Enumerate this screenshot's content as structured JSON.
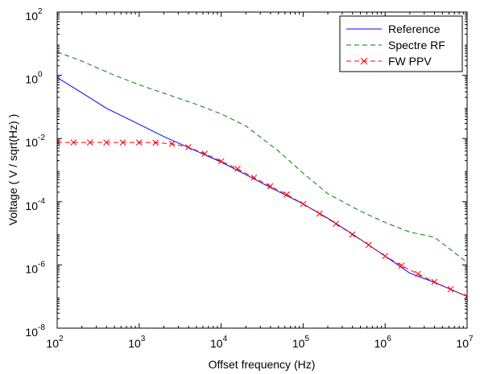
{
  "chart_data": {
    "type": "line",
    "title": "",
    "xlabel": "Offset frequency (Hz)",
    "ylabel": "Voltage ( V / sqrt(Hz) )",
    "xscale": "log",
    "yscale": "log",
    "xlim": [
      100,
      10000000
    ],
    "ylim": [
      1e-08,
      100
    ],
    "grid": false,
    "legend_position": "top-right",
    "x_ticks": [
      {
        "value": 100,
        "base": "10",
        "exp": "2"
      },
      {
        "value": 1000,
        "base": "10",
        "exp": "3"
      },
      {
        "value": 10000,
        "base": "10",
        "exp": "4"
      },
      {
        "value": 100000,
        "base": "10",
        "exp": "5"
      },
      {
        "value": 1000000,
        "base": "10",
        "exp": "6"
      },
      {
        "value": 10000000,
        "base": "10",
        "exp": "7"
      }
    ],
    "y_ticks": [
      {
        "value": 1e-08,
        "base": "10",
        "exp": "-8"
      },
      {
        "value": 1e-06,
        "base": "10",
        "exp": "-6"
      },
      {
        "value": 0.0001,
        "base": "10",
        "exp": "-4"
      },
      {
        "value": 0.01,
        "base": "10",
        "exp": "-2"
      },
      {
        "value": 1,
        "base": "10",
        "exp": "0"
      },
      {
        "value": 100,
        "base": "10",
        "exp": "2"
      }
    ],
    "series": [
      {
        "name": "Reference",
        "color": "#0000ff",
        "style": "solid",
        "marker": "none",
        "x": [
          100,
          200,
          400,
          1000,
          2000,
          4000,
          10000,
          20000,
          40000,
          100000,
          200000,
          400000,
          1000000,
          2000000,
          4000000,
          10000000
        ],
        "y": [
          0.85,
          0.28,
          0.09,
          0.028,
          0.0115,
          0.0052,
          0.0018,
          0.00072,
          0.00028,
          8.5e-05,
          3e-05,
          9.5e-06,
          1.9e-06,
          5.5e-07,
          2.8e-07,
          1e-07
        ]
      },
      {
        "name": "Spectre RF",
        "color": "#008000",
        "style": "dashed",
        "marker": "none",
        "x": [
          100,
          200,
          500,
          1000,
          2000,
          5000,
          10000,
          20000,
          50000,
          100000,
          200000,
          500000,
          1000000,
          2000000,
          4000000,
          10000000
        ],
        "y": [
          5.5,
          2.8,
          1.0,
          0.5,
          0.27,
          0.12,
          0.06,
          0.025,
          0.004,
          0.0008,
          0.00018,
          5e-05,
          2.2e-05,
          1.1e-05,
          7.5e-06,
          1.2e-06
        ]
      },
      {
        "name": "FW PPV",
        "color": "#ff0000",
        "style": "dashed",
        "marker": "x",
        "x": [
          100,
          158,
          251,
          398,
          631,
          1000,
          1585,
          2512,
          3981,
          6310,
          10000,
          15849,
          25119,
          39811,
          63096,
          100000,
          158489,
          251189,
          398107,
          630957,
          1000000,
          1584893,
          2511886,
          3981072,
          6309573,
          10000000
        ],
        "y": [
          0.0075,
          0.0075,
          0.0075,
          0.0075,
          0.0075,
          0.0075,
          0.0074,
          0.0068,
          0.0053,
          0.0033,
          0.0019,
          0.0011,
          0.00058,
          0.00031,
          0.00017,
          8.5e-05,
          4.2e-05,
          2e-05,
          9.2e-06,
          4.3e-06,
          1.9e-06,
          9.5e-07,
          5.2e-07,
          2.9e-07,
          1.7e-07,
          1e-07
        ]
      }
    ]
  }
}
